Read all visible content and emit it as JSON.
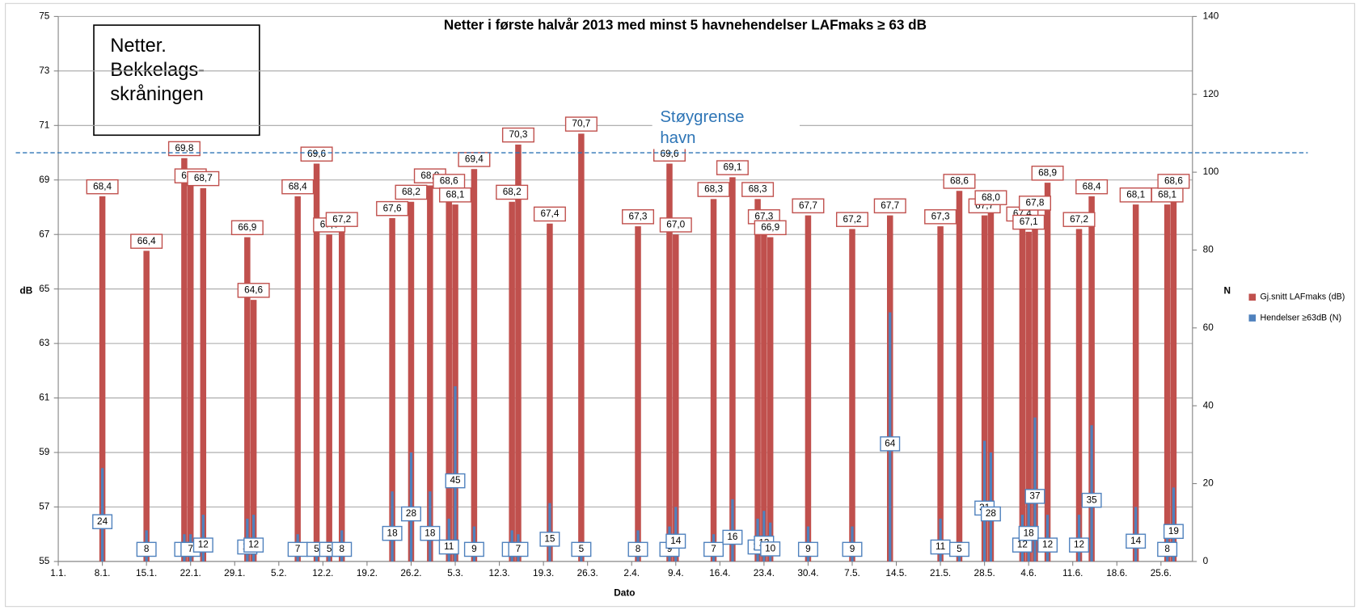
{
  "chart_data": {
    "type": "bar",
    "title": "Netter i første halvår 2013 med minst 5 havnehendelser LAFmaks ≥ 63 dB",
    "ylabel": "dB",
    "y2label": "N",
    "xlabel": "Dato",
    "annotation": [
      "Netter.",
      "Bekkelags-",
      "skråningen"
    ],
    "reference_line": {
      "value": 70,
      "label": [
        "Støygrense",
        "havn"
      ],
      "color": "#2e75b6"
    },
    "xlim": [
      0,
      180
    ],
    "xticks": [
      {
        "value": 0,
        "label": "1.1."
      },
      {
        "value": 7,
        "label": "8.1."
      },
      {
        "value": 14,
        "label": "15.1."
      },
      {
        "value": 21,
        "label": "22.1."
      },
      {
        "value": 28,
        "label": "29.1."
      },
      {
        "value": 35,
        "label": "5.2."
      },
      {
        "value": 42,
        "label": "12.2."
      },
      {
        "value": 49,
        "label": "19.2."
      },
      {
        "value": 56,
        "label": "26.2."
      },
      {
        "value": 63,
        "label": "5.3."
      },
      {
        "value": 70,
        "label": "12.3."
      },
      {
        "value": 77,
        "label": "19.3."
      },
      {
        "value": 84,
        "label": "26.3."
      },
      {
        "value": 91,
        "label": "2.4."
      },
      {
        "value": 98,
        "label": "9.4."
      },
      {
        "value": 105,
        "label": "16.4."
      },
      {
        "value": 112,
        "label": "23.4."
      },
      {
        "value": 119,
        "label": "30.4."
      },
      {
        "value": 126,
        "label": "7.5."
      },
      {
        "value": 133,
        "label": "14.5."
      },
      {
        "value": 140,
        "label": "21.5."
      },
      {
        "value": 147,
        "label": "28.5."
      },
      {
        "value": 154,
        "label": "4.6."
      },
      {
        "value": 161,
        "label": "11.6."
      },
      {
        "value": 168,
        "label": "18.6."
      },
      {
        "value": 175,
        "label": "25.6."
      }
    ],
    "ylim": [
      55,
      75
    ],
    "yticks": [
      55,
      57,
      59,
      61,
      63,
      65,
      67,
      69,
      71,
      73,
      75
    ],
    "y2lim": [
      0,
      140
    ],
    "y2ticks": [
      0,
      20,
      40,
      60,
      80,
      100,
      120,
      140
    ],
    "grid": true,
    "legend": "right",
    "x": [
      7,
      14,
      20,
      21,
      23,
      30,
      31,
      38,
      41,
      43,
      45,
      53,
      56,
      59,
      62,
      63,
      66,
      72,
      73,
      78,
      83,
      92,
      97,
      98,
      104,
      107,
      111,
      112,
      113,
      119,
      126,
      132,
      140,
      143,
      147,
      148,
      153,
      154,
      155,
      157,
      162,
      164,
      171,
      176,
      177
    ],
    "series": [
      {
        "name": "Gj.snitt LAFmaks (dB)",
        "color": "#c0504d",
        "values": [
          68.4,
          66.4,
          69.8,
          68.8,
          68.7,
          66.9,
          64.6,
          68.4,
          69.6,
          67.0,
          67.2,
          67.6,
          68.2,
          68.8,
          68.6,
          68.1,
          69.4,
          68.2,
          70.3,
          67.4,
          70.7,
          67.3,
          69.6,
          67.0,
          68.3,
          69.1,
          68.3,
          67.3,
          66.9,
          67.7,
          67.2,
          67.7,
          67.3,
          68.6,
          67.7,
          68.0,
          67.4,
          67.1,
          67.8,
          68.9,
          67.2,
          68.4,
          68.1,
          68.1,
          68.6
        ],
        "value_labels": [
          "68,4",
          "66,4",
          "69,8",
          "68,8",
          "68,7",
          "66,9",
          "64,6",
          "68,4",
          "69,6",
          "67,0",
          "67,2",
          "67,6",
          "68,2",
          "68,8",
          "68,6",
          "68,1",
          "69,4",
          "68,2",
          "70,3",
          "67,4",
          "70,7",
          "67,3",
          "69,6",
          "67,0",
          "68,3",
          "69,1",
          "68,3",
          "67,3",
          "66,9",
          "67,7",
          "67,2",
          "67,7",
          "67,3",
          "68,6",
          "67,7",
          "68,0",
          "67,4",
          "67,1",
          "67,8",
          "68,9",
          "67,2",
          "68,4",
          "68,1",
          "68,1",
          "68,6"
        ]
      },
      {
        "name": "Hendelser ≥63dB (N)",
        "color": "#4f81bd",
        "axis": "y2",
        "values": [
          24,
          8,
          7,
          7,
          12,
          11,
          12,
          7,
          5,
          5,
          8,
          18,
          28,
          18,
          11,
          45,
          9,
          8,
          7,
          15,
          5,
          8,
          9,
          14,
          7,
          16,
          11,
          13,
          10,
          9,
          9,
          64,
          11,
          5,
          31,
          28,
          12,
          18,
          37,
          12,
          12,
          35,
          14,
          8,
          19
        ]
      }
    ]
  }
}
